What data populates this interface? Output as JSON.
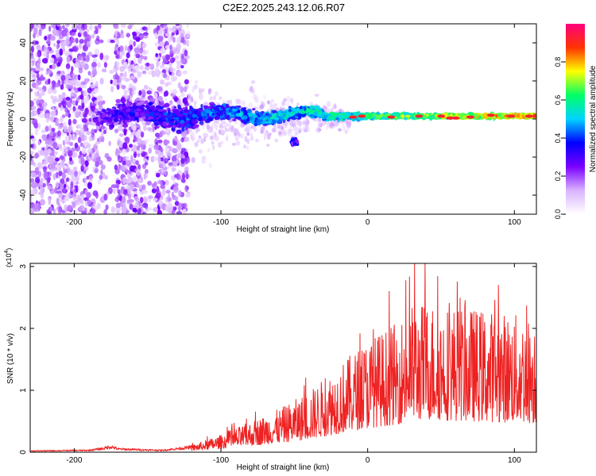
{
  "title": "C2E2.2025.243.12.06.R07",
  "chart_data": [
    {
      "type": "heatmap",
      "name": "spectrogram",
      "xlabel": "Height of straight line (km)",
      "ylabel": "Frequency (Hz)",
      "xlim": [
        -230,
        115
      ],
      "ylim": [
        -50,
        50
      ],
      "xticks": [
        -200,
        -100,
        0,
        100
      ],
      "yticks": [
        -40,
        -20,
        0,
        20,
        40
      ],
      "colorbar": {
        "label": "Normalized spectral amplitude",
        "range": [
          0.0,
          1.0
        ],
        "ticks": [
          "0.0",
          "0.2",
          "0.4",
          "0.6",
          "0.8"
        ],
        "tick_values": [
          0.0,
          0.2,
          0.4,
          0.6,
          0.8
        ],
        "colors": [
          "#ffffff",
          "#d9b3ff",
          "#7a00ff",
          "#0000ff",
          "#00d4ff",
          "#00ff66",
          "#ffff00",
          "#ff3300",
          "#ff0080"
        ]
      }
    },
    {
      "type": "line",
      "name": "snr",
      "xlabel": "Height of straight line (km)",
      "ylabel": "SNR (10 * v/v)",
      "multiplier": "(x10",
      "multiplier_exp": "4",
      "multiplier_close": ")",
      "xlim": [
        -230,
        115
      ],
      "ylim": [
        0,
        3.05
      ],
      "xticks": [
        -200,
        -100,
        0,
        100
      ],
      "yticks": [
        0,
        1,
        2,
        3
      ],
      "color": "#ee2222",
      "envelope": {
        "x": [
          -230,
          -190,
          -180,
          -175,
          -170,
          -140,
          -120,
          -100,
          -80,
          -60,
          -40,
          -20,
          0,
          20,
          30,
          40,
          60,
          80,
          100,
          115
        ],
        "y": [
          0.02,
          0.03,
          0.06,
          0.09,
          0.05,
          0.03,
          0.08,
          0.2,
          0.35,
          0.5,
          0.7,
          1.0,
          1.3,
          1.5,
          1.7,
          1.75,
          1.7,
          1.65,
          1.6,
          1.55
        ]
      }
    }
  ]
}
